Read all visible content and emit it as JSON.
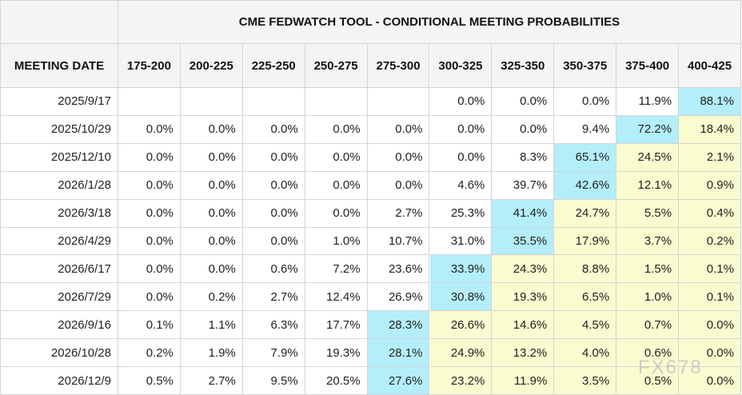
{
  "header": {
    "title": "CME FEDWATCH TOOL - CONDITIONAL MEETING PROBABILITIES"
  },
  "table": {
    "columns": [
      "MEETING DATE",
      "175-200",
      "200-225",
      "225-250",
      "250-275",
      "275-300",
      "300-325",
      "325-350",
      "350-375",
      "375-400",
      "400-425"
    ],
    "rows": [
      [
        "2025/9/17",
        null,
        null,
        null,
        null,
        null,
        "0.0%",
        "0.0%",
        "0.0%",
        "11.9%",
        "88.1%"
      ],
      [
        "2025/10/29",
        "0.0%",
        "0.0%",
        "0.0%",
        "0.0%",
        "0.0%",
        "0.0%",
        "0.0%",
        "9.4%",
        "72.2%",
        "18.4%"
      ],
      [
        "2025/12/10",
        "0.0%",
        "0.0%",
        "0.0%",
        "0.0%",
        "0.0%",
        "0.0%",
        "8.3%",
        "65.1%",
        "24.5%",
        "2.1%"
      ],
      [
        "2026/1/28",
        "0.0%",
        "0.0%",
        "0.0%",
        "0.0%",
        "0.0%",
        "4.6%",
        "39.7%",
        "42.6%",
        "12.1%",
        "0.9%"
      ],
      [
        "2026/3/18",
        "0.0%",
        "0.0%",
        "0.0%",
        "0.0%",
        "2.7%",
        "25.3%",
        "41.4%",
        "24.7%",
        "5.5%",
        "0.4%"
      ],
      [
        "2026/4/29",
        "0.0%",
        "0.0%",
        "0.0%",
        "1.0%",
        "10.7%",
        "31.0%",
        "35.5%",
        "17.9%",
        "3.7%",
        "0.2%"
      ],
      [
        "2026/6/17",
        "0.0%",
        "0.0%",
        "0.6%",
        "7.2%",
        "23.6%",
        "33.9%",
        "24.3%",
        "8.8%",
        "1.5%",
        "0.1%"
      ],
      [
        "2026/7/29",
        "0.0%",
        "0.2%",
        "2.7%",
        "12.4%",
        "26.9%",
        "30.8%",
        "19.3%",
        "6.5%",
        "1.0%",
        "0.1%"
      ],
      [
        "2026/9/16",
        "0.1%",
        "1.1%",
        "6.3%",
        "17.7%",
        "28.3%",
        "26.6%",
        "14.6%",
        "4.5%",
        "0.7%",
        "0.0%"
      ],
      [
        "2026/10/28",
        "0.2%",
        "1.9%",
        "7.9%",
        "19.3%",
        "28.1%",
        "24.9%",
        "13.2%",
        "4.0%",
        "0.6%",
        "0.0%"
      ],
      [
        "2026/12/9",
        "0.5%",
        "2.7%",
        "9.5%",
        "20.5%",
        "27.6%",
        "23.2%",
        "11.9%",
        "3.5%",
        "0.5%",
        "0.0%"
      ]
    ]
  },
  "colors": {
    "highlight": "#b4eefb",
    "after": "#fbfbd0"
  },
  "watermark": "FX678"
}
